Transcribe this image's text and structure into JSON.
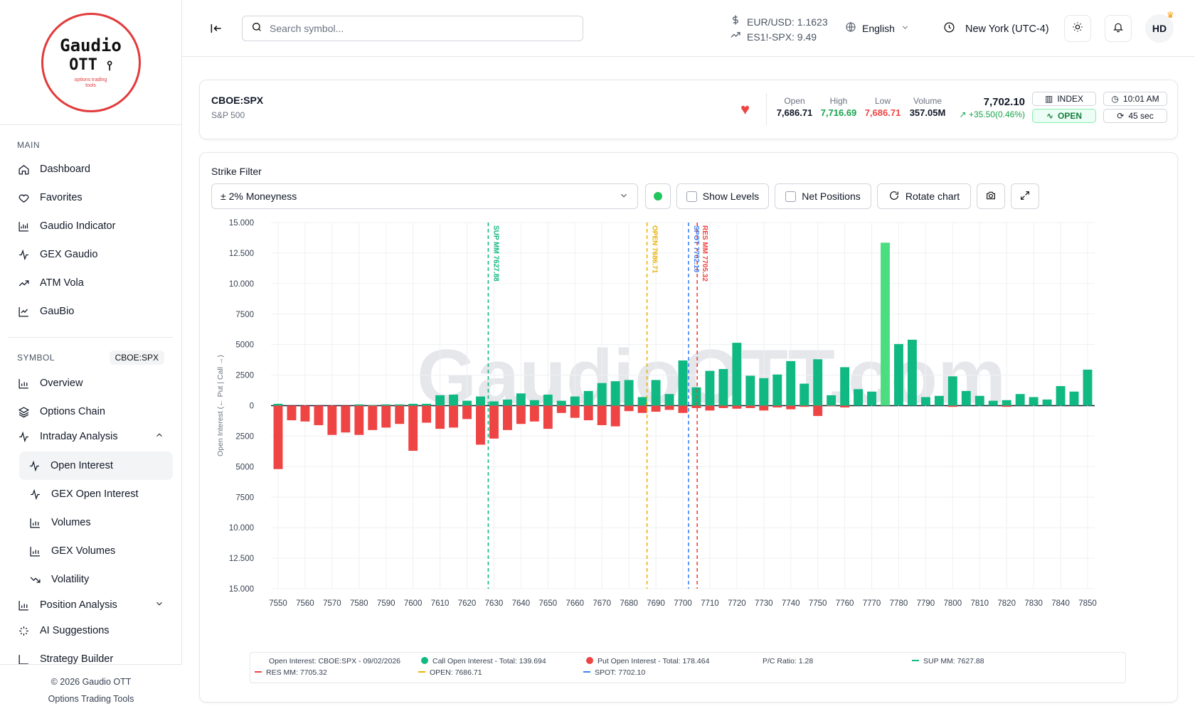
{
  "brand": {
    "line1": "Gaudio",
    "line2": "OTT",
    "tagline": "options trading tools"
  },
  "sidebar": {
    "main_title": "MAIN",
    "main_items": [
      {
        "label": "Dashboard",
        "icon": "home-icon"
      },
      {
        "label": "Favorites",
        "icon": "heart-icon"
      },
      {
        "label": "Gaudio Indicator",
        "icon": "chart-icon"
      },
      {
        "label": "GEX Gaudio",
        "icon": "activity-icon"
      },
      {
        "label": "ATM Vola",
        "icon": "trend-icon"
      },
      {
        "label": "GauBio",
        "icon": "chart-icon"
      }
    ],
    "symbol_title": "SYMBOL",
    "symbol_badge": "CBOE:SPX",
    "symbol_items": [
      {
        "label": "Overview",
        "icon": "bar-chart-icon"
      },
      {
        "label": "Options Chain",
        "icon": "layers-icon"
      },
      {
        "label": "Intraday Analysis",
        "icon": "activity-icon"
      }
    ],
    "intraday_sub": [
      {
        "label": "Open Interest",
        "icon": "activity-icon",
        "active": true
      },
      {
        "label": "GEX Open Interest",
        "icon": "activity-icon"
      },
      {
        "label": "Volumes",
        "icon": "bar-chart-icon"
      },
      {
        "label": "GEX Volumes",
        "icon": "bar-chart-icon"
      },
      {
        "label": "Volatility",
        "icon": "trend-down-icon"
      }
    ],
    "more_items": [
      {
        "label": "Position Analysis",
        "icon": "bar-chart-icon"
      },
      {
        "label": "AI Suggestions",
        "icon": "sparkles-icon"
      },
      {
        "label": "Strategy Builder",
        "icon": "chart-icon"
      }
    ],
    "footer_copyright": "© 2026 Gaudio OTT",
    "footer_tagline": "Options Trading Tools"
  },
  "header": {
    "search_placeholder": "Search symbol...",
    "quote1": "EUR/USD: 1.1623",
    "quote2": "ES1!-SPX: 9.49",
    "language": "English",
    "timezone": "New York (UTC-4)",
    "avatar": "HD"
  },
  "ticker": {
    "symbol": "CBOE:SPX",
    "name": "S&P 500",
    "open_label": "Open",
    "open": "7,686.71",
    "high_label": "High",
    "high": "7,716.69",
    "low_label": "Low",
    "low": "7,686.71",
    "volume_label": "Volume",
    "volume": "357.05M",
    "price": "7,702.10",
    "change": "+35.50(0.46%)",
    "type": "INDEX",
    "status": "OPEN",
    "time": "10:01 AM",
    "refresh": "45 sec"
  },
  "controls": {
    "strike_filter_label": "Strike Filter",
    "moneyness": "± 2% Moneyness",
    "show_levels": "Show Levels",
    "net_positions": "Net Positions",
    "rotate_chart": "Rotate chart"
  },
  "chart_data": {
    "type": "bar",
    "watermark": "GaudioOTT.com",
    "ylabel": "Open Interest (← Put | Call →)",
    "ylim": [
      -15000,
      15000
    ],
    "ytick_labels": [
      "15.000",
      "12.500",
      "10.000",
      "7500",
      "5000",
      "2500",
      "0",
      "2500",
      "5000",
      "7500",
      "10.000",
      "12.500",
      "15.000"
    ],
    "x_tick_labels": [
      "7550",
      "7560",
      "7570",
      "7580",
      "7590",
      "7600",
      "7610",
      "7620",
      "7630",
      "7640",
      "7650",
      "7660",
      "7670",
      "7680",
      "7690",
      "7700",
      "7710",
      "7720",
      "7730",
      "7740",
      "7750",
      "7760",
      "7770",
      "7780",
      "7790",
      "7800",
      "7810",
      "7820",
      "7830",
      "7840",
      "7850"
    ],
    "xlim": [
      7550,
      7850
    ],
    "strikes": [
      7550,
      7555,
      7560,
      7565,
      7570,
      7575,
      7580,
      7585,
      7590,
      7595,
      7600,
      7605,
      7610,
      7615,
      7620,
      7625,
      7630,
      7635,
      7640,
      7645,
      7650,
      7655,
      7660,
      7665,
      7670,
      7675,
      7680,
      7685,
      7690,
      7695,
      7700,
      7705,
      7710,
      7715,
      7720,
      7725,
      7730,
      7735,
      7740,
      7745,
      7750,
      7755,
      7760,
      7765,
      7770,
      7775,
      7780,
      7785,
      7790,
      7795,
      7800,
      7805,
      7810,
      7815,
      7820,
      7825,
      7830,
      7835,
      7840,
      7845,
      7850
    ],
    "series": [
      {
        "name": "Call Open Interest",
        "color": "#10b981",
        "values": [
          150,
          0,
          0,
          0,
          0,
          0,
          100,
          50,
          100,
          100,
          150,
          150,
          850,
          900,
          400,
          750,
          350,
          500,
          1000,
          450,
          900,
          400,
          750,
          1200,
          1850,
          2000,
          2100,
          700,
          2100,
          950,
          3700,
          1500,
          2850,
          3000,
          5150,
          2450,
          2250,
          2550,
          3650,
          1800,
          3800,
          850,
          3150,
          1350,
          1150,
          13350,
          5050,
          5400,
          700,
          800,
          2400,
          1200,
          800,
          400,
          450,
          950,
          700,
          500,
          1600,
          1150,
          2950
        ]
      },
      {
        "name": "Put Open Interest",
        "color": "#ef4444",
        "values": [
          -5200,
          -1200,
          -1300,
          -1600,
          -2400,
          -2200,
          -2400,
          -2000,
          -1800,
          -1500,
          -3700,
          -1400,
          -1900,
          -1800,
          -1100,
          -3200,
          -2700,
          -2000,
          -1500,
          -1300,
          -1900,
          -600,
          -1000,
          -1200,
          -1600,
          -1700,
          -450,
          -600,
          -500,
          -350,
          -600,
          -200,
          -400,
          -200,
          -250,
          -200,
          -400,
          -150,
          -300,
          -100,
          -850,
          -50,
          -150,
          0,
          0,
          0,
          0,
          0,
          0,
          0,
          -100,
          0,
          0,
          0,
          -100,
          0,
          0,
          0,
          0,
          0,
          0
        ]
      }
    ],
    "highlight": {
      "strike": 7775,
      "color": "#4ade80"
    },
    "levels": [
      {
        "label": "SUP MM 7627.88",
        "value": 7627.88,
        "color": "#10b981"
      },
      {
        "label": "OPEN 7686.71",
        "value": 7686.71,
        "color": "#eab308"
      },
      {
        "label": "SPOT 7702.10",
        "value": 7702.1,
        "color": "#3b82f6"
      },
      {
        "label": "RES MM 7705.32",
        "value": 7705.32,
        "color": "#ef4444"
      }
    ],
    "legend": {
      "title": "Open Interest: CBOE:SPX - 09/02/2026",
      "call_total": "Call Open Interest - Total: 139.694",
      "put_total": "Put Open Interest - Total: 178.464",
      "pc_ratio": "P/C Ratio: 1.28",
      "sup": "SUP MM: 7627.88",
      "res": "RES MM: 7705.32",
      "open": "OPEN: 7686.71",
      "spot": "SPOT: 7702.10"
    }
  }
}
